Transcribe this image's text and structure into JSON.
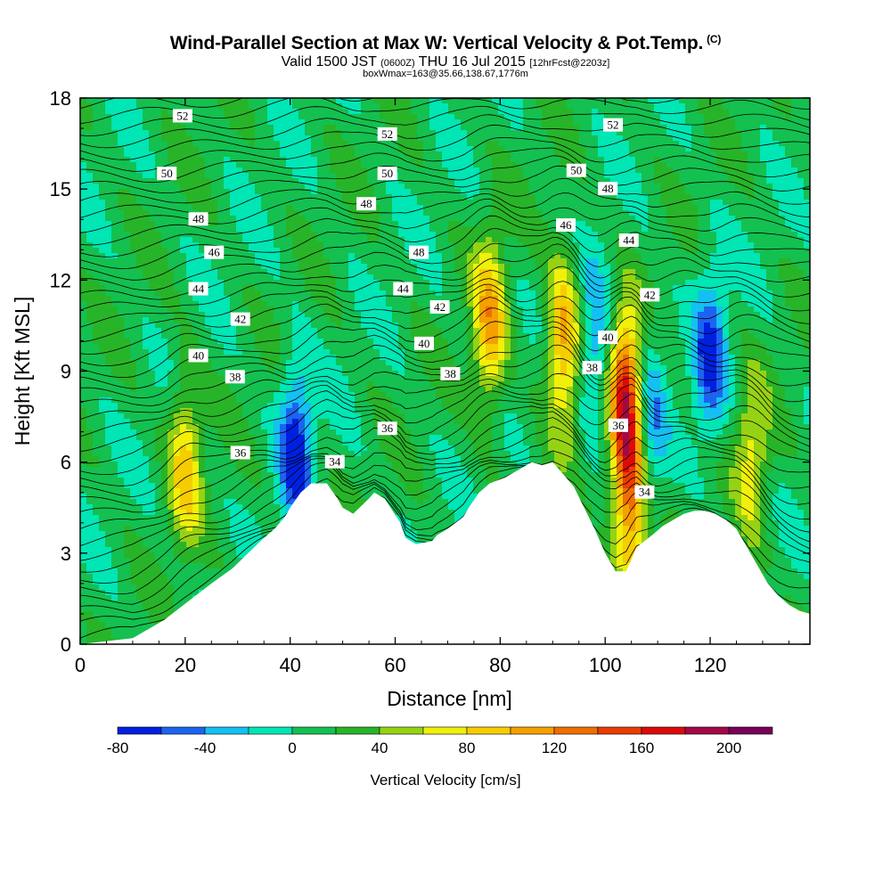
{
  "header": {
    "title": "Wind-Parallel Section at Max W: Vertical Velocity & Pot.Temp.",
    "copyright": "(C)",
    "valid_prefix": "Valid 1500 JST",
    "valid_utc": "(0600Z)",
    "valid_date": "THU 16 Jul 2015",
    "forecast": "[12hrFcst@2203z]",
    "boxwmax": "boxWmax=163@35.66,138.67,1776m"
  },
  "chart_data": {
    "type": "heatmap",
    "xlabel": "Distance [nm]",
    "ylabel": "Height [Kft MSL]",
    "xlim": [
      0,
      139
    ],
    "ylim": [
      0,
      18
    ],
    "xticks": [
      0,
      20,
      40,
      60,
      80,
      100,
      120
    ],
    "yticks": [
      0,
      3,
      6,
      9,
      12,
      15,
      18
    ],
    "colorbar": {
      "label": "Vertical Velocity [cm/s]",
      "ticks": [
        -80,
        -40,
        0,
        40,
        80,
        120,
        160,
        200
      ],
      "bins": [
        -80,
        -60,
        -40,
        -20,
        0,
        20,
        40,
        60,
        80,
        100,
        120,
        140,
        160,
        180,
        200,
        220
      ],
      "colors": [
        "#0020e0",
        "#1c64f0",
        "#14c0f2",
        "#00e6b4",
        "#14c050",
        "#28b428",
        "#96d214",
        "#f0f00a",
        "#f5cd00",
        "#f5a000",
        "#f06e00",
        "#eb3c00",
        "#dc0a0a",
        "#a00a46",
        "#78005a"
      ]
    },
    "terrain": {
      "x": [
        0,
        10,
        13,
        16,
        19,
        22,
        25,
        29,
        32,
        35,
        37,
        39,
        40,
        42,
        44,
        47,
        49,
        50,
        52,
        55,
        56,
        58,
        61,
        62,
        64,
        67,
        68,
        70,
        73,
        74,
        76,
        78,
        81,
        84,
        86,
        88,
        90,
        92,
        94,
        96,
        98,
        100,
        102,
        104,
        106,
        109,
        111,
        113,
        115,
        117,
        119,
        121,
        123,
        125,
        127,
        129,
        131,
        133,
        135,
        137,
        139
      ],
      "y": [
        0,
        0.2,
        0.5,
        0.8,
        1.2,
        1.6,
        2.0,
        2.5,
        3.0,
        3.5,
        3.8,
        4.2,
        4.5,
        5.0,
        5.3,
        5.3,
        4.8,
        4.5,
        4.3,
        4.8,
        5.0,
        4.8,
        4.0,
        3.5,
        3.3,
        3.4,
        3.6,
        3.8,
        4.2,
        4.5,
        5.0,
        5.3,
        5.5,
        5.8,
        6.0,
        5.9,
        6.0,
        5.6,
        5.2,
        4.5,
        3.8,
        3.0,
        2.4,
        2.4,
        3.2,
        3.6,
        3.9,
        4.1,
        4.3,
        4.4,
        4.4,
        4.3,
        4.1,
        3.8,
        3.2,
        2.6,
        2.0,
        1.6,
        1.3,
        1.1,
        1.0
      ]
    },
    "updrafts": [
      {
        "x": 20,
        "y": 6.0,
        "peak": 75
      },
      {
        "x": 78,
        "y": 10.5,
        "peak": 95
      },
      {
        "x": 92,
        "y": 10.0,
        "peak": 100
      },
      {
        "x": 104,
        "y": 8.0,
        "peak": 163
      },
      {
        "x": 105,
        "y": 4.5,
        "peak": 110
      },
      {
        "x": 128,
        "y": 6.0,
        "peak": 60
      }
    ],
    "downdrafts": [
      {
        "x": 41,
        "y": 6.5,
        "peak": -80
      },
      {
        "x": 98,
        "y": 9.5,
        "peak": -55
      },
      {
        "x": 108,
        "y": 7.5,
        "peak": -60
      },
      {
        "x": 120,
        "y": 9.5,
        "peak": -70
      }
    ],
    "theta_contours": {
      "levels": [
        34,
        36,
        38,
        40,
        42,
        44,
        46,
        48,
        50,
        52
      ],
      "labels": [
        {
          "text": "52",
          "x": 19.5,
          "y": 17.4
        },
        {
          "text": "50",
          "x": 16.5,
          "y": 15.5
        },
        {
          "text": "48",
          "x": 22.5,
          "y": 14.0
        },
        {
          "text": "46",
          "x": 25.5,
          "y": 12.9
        },
        {
          "text": "44",
          "x": 22.5,
          "y": 11.7
        },
        {
          "text": "42",
          "x": 30.5,
          "y": 10.7
        },
        {
          "text": "40",
          "x": 22.5,
          "y": 9.5
        },
        {
          "text": "38",
          "x": 29.5,
          "y": 8.8
        },
        {
          "text": "36",
          "x": 30.5,
          "y": 6.3
        },
        {
          "text": "34",
          "x": 48.5,
          "y": 6.0
        },
        {
          "text": "52",
          "x": 58.5,
          "y": 16.8
        },
        {
          "text": "50",
          "x": 58.5,
          "y": 15.5
        },
        {
          "text": "48",
          "x": 54.5,
          "y": 14.5
        },
        {
          "text": "48",
          "x": 64.5,
          "y": 12.9
        },
        {
          "text": "44",
          "x": 61.5,
          "y": 11.7
        },
        {
          "text": "42",
          "x": 68.5,
          "y": 11.1
        },
        {
          "text": "40",
          "x": 65.5,
          "y": 9.9
        },
        {
          "text": "38",
          "x": 70.5,
          "y": 8.9
        },
        {
          "text": "36",
          "x": 58.5,
          "y": 7.1
        },
        {
          "text": "52",
          "x": 101.5,
          "y": 17.1
        },
        {
          "text": "50",
          "x": 94.5,
          "y": 15.6
        },
        {
          "text": "48",
          "x": 100.5,
          "y": 15.0
        },
        {
          "text": "46",
          "x": 92.5,
          "y": 13.8
        },
        {
          "text": "44",
          "x": 104.5,
          "y": 13.3
        },
        {
          "text": "42",
          "x": 108.5,
          "y": 11.5
        },
        {
          "text": "40",
          "x": 100.5,
          "y": 10.1
        },
        {
          "text": "38",
          "x": 97.5,
          "y": 9.1
        },
        {
          "text": "36",
          "x": 102.5,
          "y": 7.2
        },
        {
          "text": "34",
          "x": 107.5,
          "y": 5.0
        }
      ]
    }
  }
}
